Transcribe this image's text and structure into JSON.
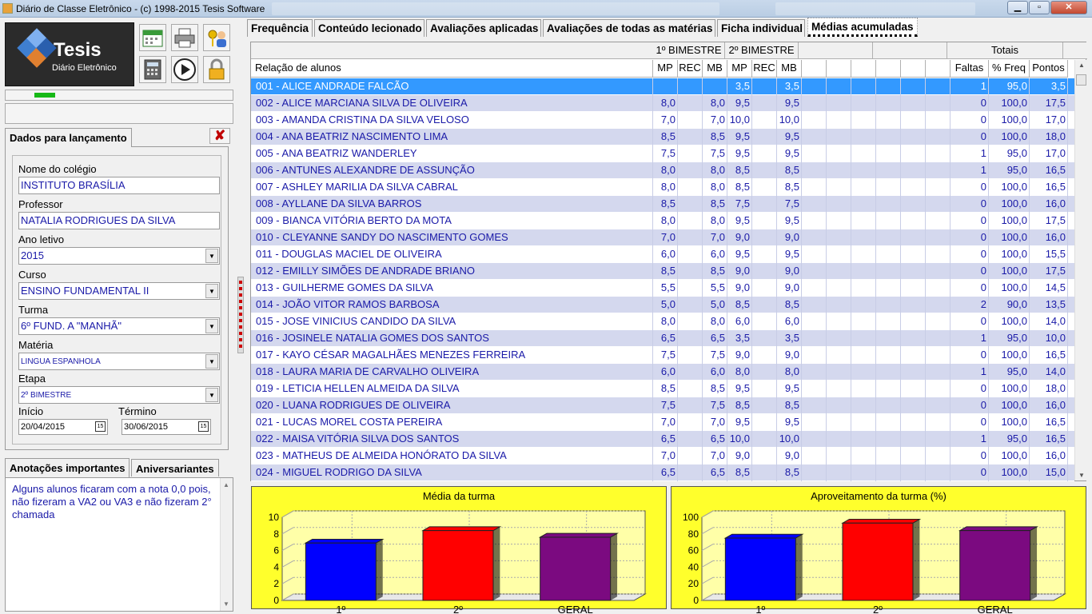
{
  "window": {
    "title": "Diário de Classe Eletrônico -  (c) 1998-2015 Tesis Software",
    "min_glyph": "▁",
    "max_glyph": "▫",
    "close_glyph": "✕"
  },
  "logo": {
    "name": "Tesis",
    "subtitle": "Diário Eletrônico"
  },
  "launch": {
    "tab_label": "Dados para lançamento",
    "close_glyph": "✘",
    "school_label": "Nome do colégio",
    "school_value": "INSTITUTO BRASÍLIA",
    "teacher_label": "Professor",
    "teacher_value": "NATALIA RODRIGUES DA SILVA",
    "year_label": "Ano letivo",
    "year_value": "2015",
    "course_label": "Curso",
    "course_value": "ENSINO FUNDAMENTAL II",
    "class_label": "Turma",
    "class_value": "6º FUND. A \"MANHÃ\"",
    "subject_label": "Matéria",
    "subject_value": "LINGUA ESPANHOLA",
    "stage_label": "Etapa",
    "stage_value": "2º BIMESTRE",
    "start_label": "Início",
    "start_value": "20/04/2015",
    "end_label": "Término",
    "end_value": "30/06/2015",
    "dropdown_glyph": "▼",
    "calendar_glyph": "15"
  },
  "notes": {
    "tab_notes": "Anotações importantes",
    "tab_birthdays": "Aniversariantes",
    "text": "Alguns alunos ficaram com a nota 0,0 pois, não fizeram a VA2 ou VA3 e não fizeram 2° chamada"
  },
  "tabs": [
    "Frequência",
    "Conteúdo lecionado",
    "Avaliações aplicadas",
    "Avaliações de todas as matérias",
    "Ficha individual",
    "Médias acumuladas"
  ],
  "grid": {
    "group1": "1º BIMESTRE",
    "group2": "2º BIMESTRE",
    "totals": "Totais",
    "col_name": "Relação de alunos",
    "col_mp": "MP",
    "col_rec": "REC",
    "col_mb": "MB",
    "col_faltas": "Faltas",
    "col_freq": "% Freq",
    "col_pontos": "Pontos",
    "rows": [
      {
        "name": "001 - ALICE ANDRADE FALCÃO",
        "mp1": "",
        "rec1": "",
        "mb1": "",
        "mp2": "3,5",
        "rec2": "",
        "mb2": "3,5",
        "faltas": "1",
        "freq": "95,0",
        "pontos": "3,5"
      },
      {
        "name": "002 - ALICE MARCIANA SILVA DE OLIVEIRA",
        "mp1": "8,0",
        "rec1": "",
        "mb1": "8,0",
        "mp2": "9,5",
        "rec2": "",
        "mb2": "9,5",
        "faltas": "0",
        "freq": "100,0",
        "pontos": "17,5"
      },
      {
        "name": "003 - AMANDA CRISTINA DA SILVA VELOSO",
        "mp1": "7,0",
        "rec1": "",
        "mb1": "7,0",
        "mp2": "10,0",
        "rec2": "",
        "mb2": "10,0",
        "faltas": "0",
        "freq": "100,0",
        "pontos": "17,0"
      },
      {
        "name": "004 - ANA BEATRIZ NASCIMENTO LIMA",
        "mp1": "8,5",
        "rec1": "",
        "mb1": "8,5",
        "mp2": "9,5",
        "rec2": "",
        "mb2": "9,5",
        "faltas": "0",
        "freq": "100,0",
        "pontos": "18,0"
      },
      {
        "name": "005 - ANA BEATRIZ WANDERLEY",
        "mp1": "7,5",
        "rec1": "",
        "mb1": "7,5",
        "mp2": "9,5",
        "rec2": "",
        "mb2": "9,5",
        "faltas": "1",
        "freq": "95,0",
        "pontos": "17,0"
      },
      {
        "name": "006 - ANTUNES ALEXANDRE DE ASSUNÇÃO",
        "mp1": "8,0",
        "rec1": "",
        "mb1": "8,0",
        "mp2": "8,5",
        "rec2": "",
        "mb2": "8,5",
        "faltas": "1",
        "freq": "95,0",
        "pontos": "16,5"
      },
      {
        "name": "007 - ASHLEY MARILIA DA SILVA CABRAL",
        "mp1": "8,0",
        "rec1": "",
        "mb1": "8,0",
        "mp2": "8,5",
        "rec2": "",
        "mb2": "8,5",
        "faltas": "0",
        "freq": "100,0",
        "pontos": "16,5"
      },
      {
        "name": "008 - AYLLANE DA SILVA BARROS",
        "mp1": "8,5",
        "rec1": "",
        "mb1": "8,5",
        "mp2": "7,5",
        "rec2": "",
        "mb2": "7,5",
        "faltas": "0",
        "freq": "100,0",
        "pontos": "16,0"
      },
      {
        "name": "009 - BIANCA VITÓRIA BERTO DA MOTA",
        "mp1": "8,0",
        "rec1": "",
        "mb1": "8,0",
        "mp2": "9,5",
        "rec2": "",
        "mb2": "9,5",
        "faltas": "0",
        "freq": "100,0",
        "pontos": "17,5"
      },
      {
        "name": "010 - CLEYANNE SANDY DO NASCIMENTO GOMES",
        "mp1": "7,0",
        "rec1": "",
        "mb1": "7,0",
        "mp2": "9,0",
        "rec2": "",
        "mb2": "9,0",
        "faltas": "0",
        "freq": "100,0",
        "pontos": "16,0"
      },
      {
        "name": "011 - DOUGLAS MACIEL DE OLIVEIRA",
        "mp1": "6,0",
        "rec1": "",
        "mb1": "6,0",
        "mp2": "9,5",
        "rec2": "",
        "mb2": "9,5",
        "faltas": "0",
        "freq": "100,0",
        "pontos": "15,5"
      },
      {
        "name": "012 - EMILLY SIMÕES DE ANDRADE BRIANO",
        "mp1": "8,5",
        "rec1": "",
        "mb1": "8,5",
        "mp2": "9,0",
        "rec2": "",
        "mb2": "9,0",
        "faltas": "0",
        "freq": "100,0",
        "pontos": "17,5"
      },
      {
        "name": "013 - GUILHERME GOMES DA SILVA",
        "mp1": "5,5",
        "rec1": "",
        "mb1": "5,5",
        "mp2": "9,0",
        "rec2": "",
        "mb2": "9,0",
        "faltas": "0",
        "freq": "100,0",
        "pontos": "14,5"
      },
      {
        "name": "014 - JOÃO VITOR RAMOS BARBOSA",
        "mp1": "5,0",
        "rec1": "",
        "mb1": "5,0",
        "mp2": "8,5",
        "rec2": "",
        "mb2": "8,5",
        "faltas": "2",
        "freq": "90,0",
        "pontos": "13,5"
      },
      {
        "name": "015 - JOSE VINICIUS CANDIDO DA SILVA",
        "mp1": "8,0",
        "rec1": "",
        "mb1": "8,0",
        "mp2": "6,0",
        "rec2": "",
        "mb2": "6,0",
        "faltas": "0",
        "freq": "100,0",
        "pontos": "14,0"
      },
      {
        "name": "016 - JOSINELE NATALIA GOMES DOS SANTOS",
        "mp1": "6,5",
        "rec1": "",
        "mb1": "6,5",
        "mp2": "3,5",
        "rec2": "",
        "mb2": "3,5",
        "faltas": "1",
        "freq": "95,0",
        "pontos": "10,0"
      },
      {
        "name": "017 - KAYO CÉSAR MAGALHÃES MENEZES FERREIRA",
        "mp1": "7,5",
        "rec1": "",
        "mb1": "7,5",
        "mp2": "9,0",
        "rec2": "",
        "mb2": "9,0",
        "faltas": "0",
        "freq": "100,0",
        "pontos": "16,5"
      },
      {
        "name": "018 - LAURA MARIA DE CARVALHO OLIVEIRA",
        "mp1": "6,0",
        "rec1": "",
        "mb1": "6,0",
        "mp2": "8,0",
        "rec2": "",
        "mb2": "8,0",
        "faltas": "1",
        "freq": "95,0",
        "pontos": "14,0"
      },
      {
        "name": "019 - LETICIA HELLEN ALMEIDA DA SILVA",
        "mp1": "8,5",
        "rec1": "",
        "mb1": "8,5",
        "mp2": "9,5",
        "rec2": "",
        "mb2": "9,5",
        "faltas": "0",
        "freq": "100,0",
        "pontos": "18,0"
      },
      {
        "name": "020 - LUANA RODRIGUES DE OLIVEIRA",
        "mp1": "7,5",
        "rec1": "",
        "mb1": "7,5",
        "mp2": "8,5",
        "rec2": "",
        "mb2": "8,5",
        "faltas": "0",
        "freq": "100,0",
        "pontos": "16,0"
      },
      {
        "name": "021 - LUCAS MOREL COSTA PEREIRA",
        "mp1": "7,0",
        "rec1": "",
        "mb1": "7,0",
        "mp2": "9,5",
        "rec2": "",
        "mb2": "9,5",
        "faltas": "0",
        "freq": "100,0",
        "pontos": "16,5"
      },
      {
        "name": "022 - MAISA VITÓRIA SILVA DOS SANTOS",
        "mp1": "6,5",
        "rec1": "",
        "mb1": "6,5",
        "mp2": "10,0",
        "rec2": "",
        "mb2": "10,0",
        "faltas": "1",
        "freq": "95,0",
        "pontos": "16,5"
      },
      {
        "name": "023 - MATHEUS DE ALMEIDA HONÓRATO DA SILVA",
        "mp1": "7,0",
        "rec1": "",
        "mb1": "7,0",
        "mp2": "9,0",
        "rec2": "",
        "mb2": "9,0",
        "faltas": "0",
        "freq": "100,0",
        "pontos": "16,0"
      },
      {
        "name": "024 - MIGUEL RODRIGO DA SILVA",
        "mp1": "6,5",
        "rec1": "",
        "mb1": "6,5",
        "mp2": "8,5",
        "rec2": "",
        "mb2": "8,5",
        "faltas": "0",
        "freq": "100,0",
        "pontos": "15,0"
      }
    ]
  },
  "colors": {
    "selected_row": "#3399ff",
    "alt_row": "#d4d8ee",
    "text_blue": "#1a1aa8",
    "chart_bg": "#ffff2c"
  },
  "chart_data": [
    {
      "type": "bar",
      "title": "Média da turma",
      "categories": [
        "1º",
        "2º",
        "GERAL"
      ],
      "values": [
        6.9,
        8.4,
        7.6
      ],
      "ylim": [
        0,
        10
      ],
      "yticks": [
        0,
        2,
        4,
        6,
        8,
        10
      ],
      "colors": [
        "#0000ff",
        "#ff0000",
        "#7b0a80"
      ],
      "grid": true
    },
    {
      "type": "bar",
      "title": "Aproveitamento da turma (%)",
      "categories": [
        "1º",
        "2º",
        "GERAL"
      ],
      "values": [
        75,
        93,
        84
      ],
      "ylim": [
        0,
        100
      ],
      "yticks": [
        0,
        20,
        40,
        60,
        80,
        100
      ],
      "colors": [
        "#0000ff",
        "#ff0000",
        "#7b0a80"
      ],
      "grid": true
    }
  ]
}
